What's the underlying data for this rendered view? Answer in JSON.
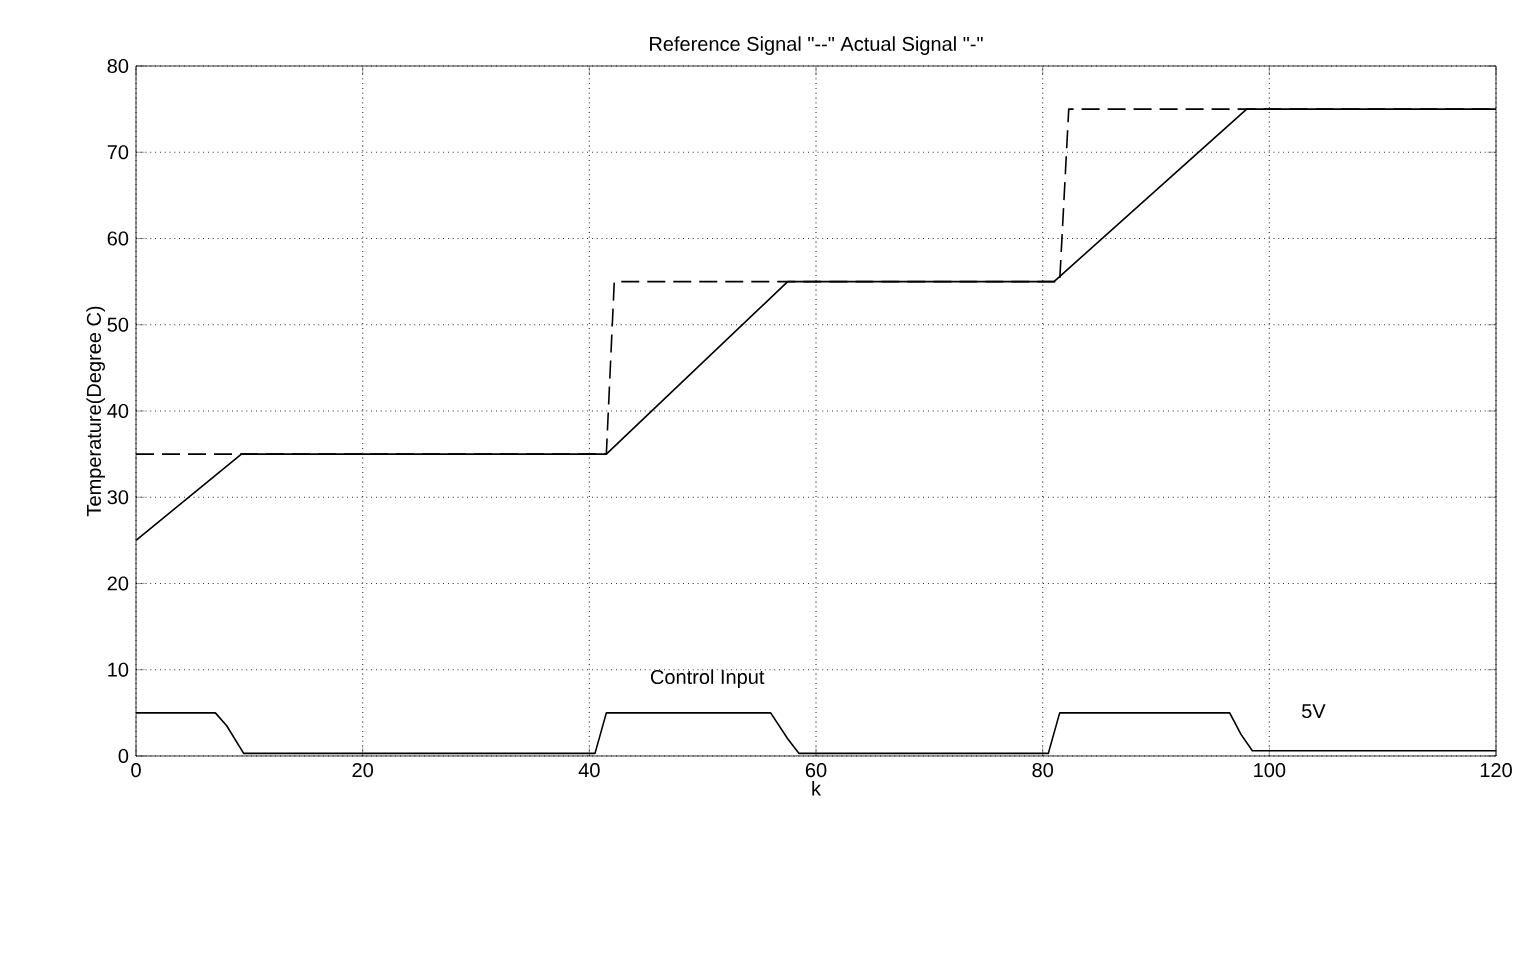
{
  "chart_data": {
    "type": "line",
    "title": "Reference Signal \"--\" Actual Signal \"-\"",
    "xlabel": "k",
    "ylabel": "Temperature(Degree C)",
    "xlim": [
      0,
      120
    ],
    "ylim": [
      0,
      80
    ],
    "xticks": [
      0,
      20,
      40,
      60,
      80,
      100,
      120
    ],
    "yticks": [
      0,
      10,
      20,
      30,
      40,
      50,
      60,
      70,
      80
    ],
    "grid": true,
    "marker": "none",
    "series": [
      {
        "color": "#000000",
        "line_style": "dashed",
        "x": [
          0,
          41.5,
          42.2,
          81.5,
          82.3,
          120
        ],
        "values": [
          35,
          35,
          55,
          55,
          75,
          75
        ]
      },
      {
        "color": "#000000",
        "line_style": "solid",
        "x": [
          0,
          9.3,
          41.5,
          57.5,
          81,
          98,
          120
        ],
        "values": [
          25,
          35,
          35,
          55,
          55,
          75,
          75
        ]
      },
      {
        "color": "#000000",
        "line_style": "solid",
        "x": [
          0,
          7,
          8,
          9.5,
          40.5,
          41.5,
          56,
          57.5,
          58.5,
          80.5,
          81.5,
          96.5,
          97.5,
          98.5,
          120
        ],
        "values": [
          5,
          5,
          3.5,
          0.3,
          0.3,
          5,
          5,
          2,
          0.3,
          0.3,
          5,
          5,
          2.5,
          0.6,
          0.6
        ]
      }
    ],
    "annotations": [
      "Control Input",
      "5V"
    ]
  }
}
